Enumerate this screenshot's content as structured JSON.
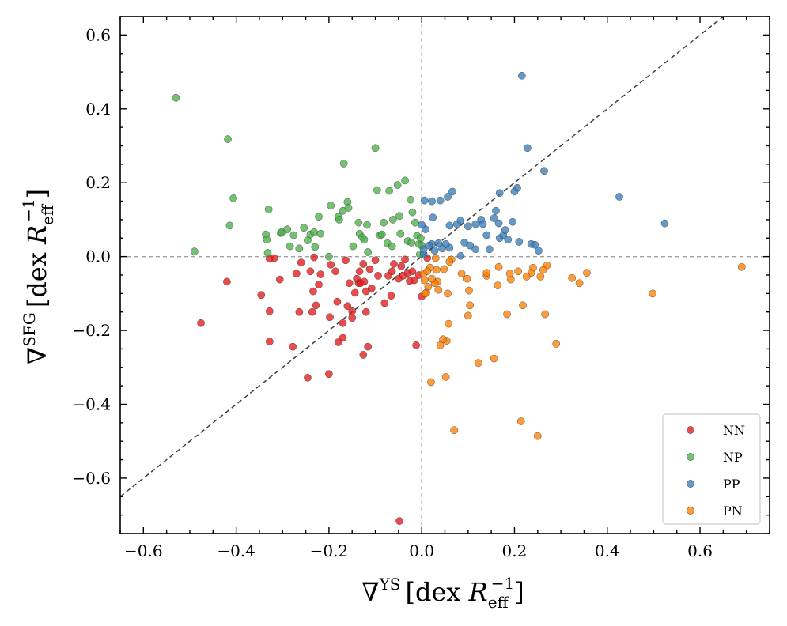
{
  "chart_data": {
    "type": "scatter",
    "xlabel": {
      "nabla": "∇",
      "sup": "YS",
      "bracket_open": "[dex ",
      "var": "R",
      "sub": "eff",
      "exp": "−1",
      "bracket_close": "]"
    },
    "ylabel": {
      "nabla": "∇",
      "sup": "SFG",
      "bracket_open": "[dex ",
      "var": "R",
      "sub": "eff",
      "exp": "−1",
      "bracket_close": "]"
    },
    "xlim": [
      -0.65,
      0.75
    ],
    "ylim": [
      -0.75,
      0.65
    ],
    "x_ticks": [
      {
        "value": -0.6,
        "label": "−0.6"
      },
      {
        "value": -0.4,
        "label": "−0.4"
      },
      {
        "value": -0.2,
        "label": "−0.2"
      },
      {
        "value": 0.0,
        "label": "0.0"
      },
      {
        "value": 0.2,
        "label": "0.2"
      },
      {
        "value": 0.4,
        "label": "0.4"
      },
      {
        "value": 0.6,
        "label": "0.6"
      }
    ],
    "y_ticks": [
      {
        "value": 0.6,
        "label": "0.6"
      },
      {
        "value": 0.4,
        "label": "0.4"
      },
      {
        "value": 0.2,
        "label": "0.2"
      },
      {
        "value": 0.0,
        "label": "0.0"
      },
      {
        "value": -0.2,
        "label": "−0.2"
      },
      {
        "value": -0.4,
        "label": "−0.4"
      },
      {
        "value": -0.6,
        "label": "−0.6"
      }
    ],
    "reference_lines": {
      "diagonal_one_to_one": true,
      "x_zero": true,
      "y_zero": true
    },
    "legend_position": "lower-right",
    "series": [
      {
        "name": "NN",
        "color": "#e41a1c",
        "points": [
          [
            -0.048,
            -0.716
          ],
          [
            -0.476,
            -0.18
          ],
          [
            -0.42,
            -0.068
          ],
          [
            -0.346,
            -0.104
          ],
          [
            -0.328,
            -0.148
          ],
          [
            -0.328,
            -0.23
          ],
          [
            -0.328,
            -0.006
          ],
          [
            -0.318,
            -0.004
          ],
          [
            -0.306,
            -0.062
          ],
          [
            -0.278,
            -0.244
          ],
          [
            -0.27,
            -0.046
          ],
          [
            -0.264,
            -0.15
          ],
          [
            -0.26,
            -0.016
          ],
          [
            -0.246,
            -0.328
          ],
          [
            -0.24,
            -0.04
          ],
          [
            -0.236,
            -0.15
          ],
          [
            -0.234,
            -0.094
          ],
          [
            -0.232,
            -0.002
          ],
          [
            -0.228,
            -0.132
          ],
          [
            -0.222,
            -0.076
          ],
          [
            -0.218,
            -0.048
          ],
          [
            -0.2,
            -0.318
          ],
          [
            -0.198,
            -0.164
          ],
          [
            -0.196,
            -0.022
          ],
          [
            -0.186,
            -0.04
          ],
          [
            -0.182,
            -0.122
          ],
          [
            -0.18,
            -0.232
          ],
          [
            -0.17,
            -0.18
          ],
          [
            -0.17,
            -0.22
          ],
          [
            -0.164,
            -0.01
          ],
          [
            -0.16,
            -0.134
          ],
          [
            -0.156,
            -0.072
          ],
          [
            -0.15,
            -0.166
          ],
          [
            -0.15,
            -0.148
          ],
          [
            -0.144,
            -0.098
          ],
          [
            -0.14,
            -0.06
          ],
          [
            -0.136,
            -0.072
          ],
          [
            -0.134,
            -0.04
          ],
          [
            -0.132,
            -0.072
          ],
          [
            -0.126,
            -0.02
          ],
          [
            -0.126,
            -0.266
          ],
          [
            -0.124,
            -0.068
          ],
          [
            -0.12,
            -0.15
          ],
          [
            -0.12,
            -0.094
          ],
          [
            -0.116,
            -0.244
          ],
          [
            -0.112,
            -0.034
          ],
          [
            -0.108,
            -0.086
          ],
          [
            -0.1,
            -0.01
          ],
          [
            -0.094,
            -0.052
          ],
          [
            -0.08,
            -0.126
          ],
          [
            -0.072,
            -0.052
          ],
          [
            -0.066,
            -0.106
          ],
          [
            -0.064,
            -0.04
          ],
          [
            -0.06,
            -0.02
          ],
          [
            -0.05,
            -0.06
          ],
          [
            -0.044,
            -0.026
          ],
          [
            -0.04,
            -0.052
          ],
          [
            -0.036,
            -0.008
          ],
          [
            -0.03,
            -0.044
          ],
          [
            -0.026,
            -0.066
          ],
          [
            -0.02,
            -0.04
          ],
          [
            -0.016,
            -0.064
          ],
          [
            -0.012,
            -0.24
          ],
          [
            -0.006,
            -0.05
          ],
          [
            0.0,
            -0.108
          ],
          [
            0.012,
            -0.004
          ]
        ]
      },
      {
        "name": "NP",
        "color": "#4daf4a",
        "points": [
          [
            -0.53,
            0.43
          ],
          [
            -0.49,
            0.014
          ],
          [
            -0.418,
            0.318
          ],
          [
            -0.414,
            0.084
          ],
          [
            -0.406,
            0.158
          ],
          [
            -0.336,
            0.06
          ],
          [
            -0.334,
            0.046
          ],
          [
            -0.332,
            0.01
          ],
          [
            -0.33,
            0.128
          ],
          [
            -0.304,
            0.064
          ],
          [
            -0.302,
            0.066
          ],
          [
            -0.29,
            0.074
          ],
          [
            -0.284,
            0.028
          ],
          [
            -0.276,
            0.058
          ],
          [
            -0.264,
            0.022
          ],
          [
            -0.254,
            0.078
          ],
          [
            -0.246,
            0.044
          ],
          [
            -0.24,
            0.06
          ],
          [
            -0.232,
            0.066
          ],
          [
            -0.23,
            0.026
          ],
          [
            -0.222,
            0.108
          ],
          [
            -0.218,
            0.062
          ],
          [
            -0.2,
            0.0
          ],
          [
            -0.196,
            0.138
          ],
          [
            -0.18,
            0.108
          ],
          [
            -0.178,
            0.1
          ],
          [
            -0.17,
            0.124
          ],
          [
            -0.168,
            0.252
          ],
          [
            -0.16,
            0.148
          ],
          [
            -0.158,
            0.132
          ],
          [
            -0.148,
            0.028
          ],
          [
            -0.136,
            0.092
          ],
          [
            -0.134,
            0.062
          ],
          [
            -0.128,
            0.052
          ],
          [
            -0.124,
            0.046
          ],
          [
            -0.118,
            0.086
          ],
          [
            -0.116,
            0.012
          ],
          [
            -0.1,
            0.294
          ],
          [
            -0.096,
            0.18
          ],
          [
            -0.09,
            0.058
          ],
          [
            -0.086,
            0.06
          ],
          [
            -0.082,
            0.092
          ],
          [
            -0.074,
            0.036
          ],
          [
            -0.07,
            0.178
          ],
          [
            -0.064,
            0.028
          ],
          [
            -0.062,
            0.1
          ],
          [
            -0.052,
            0.194
          ],
          [
            -0.048,
            0.11
          ],
          [
            -0.046,
            0.062
          ],
          [
            -0.036,
            0.206
          ],
          [
            -0.03,
            0.042
          ],
          [
            -0.024,
            0.154
          ],
          [
            -0.022,
            0.038
          ],
          [
            -0.02,
            0.12
          ],
          [
            -0.014,
            0.092
          ],
          [
            -0.01,
            0.056
          ],
          [
            -0.006,
            0.034
          ],
          [
            -0.004,
            0.006
          ],
          [
            -0.002,
            0.05
          ],
          [
            0.0,
            0.03
          ]
        ]
      },
      {
        "name": "PP",
        "color": "#377eb8",
        "points": [
          [
            0.216,
            0.49
          ],
          [
            0.228,
            0.294
          ],
          [
            0.264,
            0.232
          ],
          [
            0.426,
            0.162
          ],
          [
            0.524,
            0.09
          ],
          [
            0.206,
            0.186
          ],
          [
            0.2,
            0.176
          ],
          [
            0.066,
            0.176
          ],
          [
            0.168,
            0.172
          ],
          [
            0.056,
            0.162
          ],
          [
            0.04,
            0.152
          ],
          [
            0.022,
            0.15
          ],
          [
            0.006,
            0.152
          ],
          [
            0.084,
            0.098
          ],
          [
            0.076,
            0.088
          ],
          [
            0.024,
            0.106
          ],
          [
            0.022,
            0.034
          ],
          [
            0.016,
            0.03
          ],
          [
            0.116,
            0.088
          ],
          [
            0.128,
            0.1
          ],
          [
            0.132,
            0.088
          ],
          [
            0.156,
            0.104
          ],
          [
            0.16,
            0.124
          ],
          [
            0.166,
            0.09
          ],
          [
            0.196,
            0.094
          ],
          [
            0.168,
            0.05
          ],
          [
            0.176,
            0.058
          ],
          [
            0.18,
            0.072
          ],
          [
            0.186,
            0.046
          ],
          [
            0.21,
            0.04
          ],
          [
            0.236,
            0.034
          ],
          [
            0.244,
            0.032
          ],
          [
            0.252,
            0.016
          ],
          [
            0.14,
            0.058
          ],
          [
            0.146,
            0.02
          ],
          [
            0.116,
            0.02
          ],
          [
            0.104,
            0.03
          ],
          [
            0.092,
            0.038
          ],
          [
            0.084,
            0.002
          ],
          [
            0.06,
            0.024
          ],
          [
            0.052,
            0.034
          ],
          [
            0.044,
            0.022
          ],
          [
            0.036,
            0.036
          ],
          [
            0.028,
            0.016
          ],
          [
            0.008,
            0.074
          ],
          [
            0.004,
            0.02
          ],
          [
            0.0,
            0.086
          ],
          [
            0.004,
            0.006
          ],
          [
            0.06,
            0.084
          ],
          [
            0.1,
            0.082
          ]
        ]
      },
      {
        "name": "PN",
        "color": "#ff7f00",
        "points": [
          [
            0.69,
            -0.028
          ],
          [
            0.498,
            -0.1
          ],
          [
            0.356,
            -0.044
          ],
          [
            0.34,
            -0.072
          ],
          [
            0.324,
            -0.058
          ],
          [
            0.29,
            -0.236
          ],
          [
            0.266,
            -0.156
          ],
          [
            0.27,
            -0.024
          ],
          [
            0.262,
            -0.036
          ],
          [
            0.256,
            -0.054
          ],
          [
            0.25,
            -0.486
          ],
          [
            0.24,
            -0.03
          ],
          [
            0.236,
            -0.044
          ],
          [
            0.226,
            -0.054
          ],
          [
            0.214,
            -0.446
          ],
          [
            0.218,
            -0.132
          ],
          [
            0.208,
            -0.04
          ],
          [
            0.192,
            -0.062
          ],
          [
            0.19,
            -0.046
          ],
          [
            0.184,
            -0.156
          ],
          [
            0.166,
            -0.028
          ],
          [
            0.164,
            -0.078
          ],
          [
            0.156,
            -0.276
          ],
          [
            0.14,
            -0.052
          ],
          [
            0.14,
            -0.044
          ],
          [
            0.122,
            -0.288
          ],
          [
            0.104,
            -0.132
          ],
          [
            0.102,
            -0.092
          ],
          [
            0.1,
            -0.16
          ],
          [
            0.098,
            -0.06
          ],
          [
            0.086,
            -0.046
          ],
          [
            0.07,
            -0.47
          ],
          [
            0.064,
            -0.008
          ],
          [
            0.06,
            -0.014
          ],
          [
            0.058,
            -0.182
          ],
          [
            0.056,
            -0.1
          ],
          [
            0.054,
            -0.228
          ],
          [
            0.052,
            -0.326
          ],
          [
            0.048,
            -0.034
          ],
          [
            0.046,
            -0.224
          ],
          [
            0.04,
            -0.24
          ],
          [
            0.036,
            -0.09
          ],
          [
            0.034,
            -0.068
          ],
          [
            0.032,
            -0.036
          ],
          [
            0.028,
            -0.072
          ],
          [
            0.022,
            -0.06
          ],
          [
            0.018,
            -0.03
          ],
          [
            0.014,
            -0.082
          ],
          [
            0.01,
            -0.098
          ],
          [
            0.008,
            -0.1
          ],
          [
            0.006,
            -0.064
          ],
          [
            0.004,
            -0.046
          ],
          [
            0.02,
            -0.34
          ],
          [
            0.03,
            -0.004
          ],
          [
            0.012,
            -0.04
          ]
        ]
      }
    ]
  }
}
